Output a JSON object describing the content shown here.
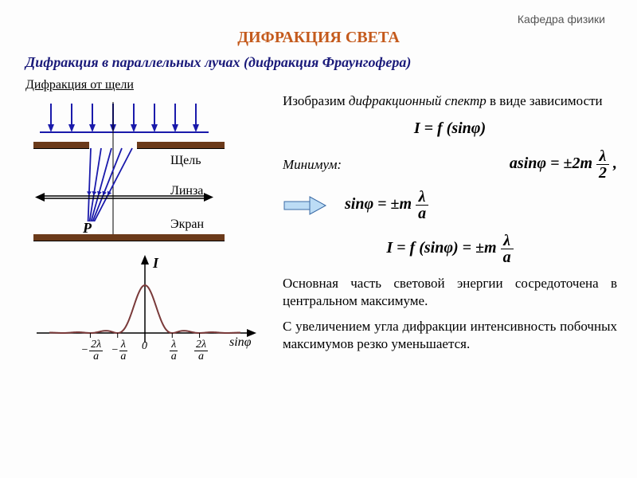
{
  "header": {
    "department": "Кафедра физики",
    "title": "ДИФРАКЦИЯ СВЕТА",
    "subtitle": "Дифракция в параллельных лучах (дифракция Фраунгофера)",
    "section": "Дифракция от щели"
  },
  "diagram": {
    "labels": {
      "slit": "Щель",
      "lens": "Линза",
      "screen": "Экран",
      "point": "P"
    },
    "ray_color": "#1a1aab",
    "arrow_color": "#1a1aab",
    "bar_color": "#6b3a1a",
    "lens_color": "#000000"
  },
  "graph": {
    "curve_color": "#7a3a3a",
    "axis_color": "#000000",
    "y_label": "I",
    "x_label": "sinφ",
    "ticks": [
      "−2λ/a",
      "−λ/a",
      "0",
      "λ/a",
      "2λ/a"
    ],
    "n_side_lobes": 3,
    "central_peak_height": 60,
    "side_peak_height": 14
  },
  "text": {
    "intro_a": "Изобразим ",
    "intro_b": "дифракционный спектр",
    "intro_c": " в виде зависимости",
    "minimum_label": "Минимум:",
    "body1": "Основная часть световой энергии сосредоточена в центральном максимуме.",
    "body2": "С увеличением угла дифракции интенсивность побочных максимумов резко уменьшается."
  },
  "formulas": {
    "f1": "I = f (sinφ)",
    "min_lhs": "asinφ = ±2m",
    "min_frac_n": "λ",
    "min_frac_d": "2",
    "sin_lhs": "sinφ = ±m",
    "sin_frac_n": "λ",
    "sin_frac_d": "a",
    "I_lhs": "I = f (sinφ) = ±m",
    "I_frac_n": "λ",
    "I_frac_d": "a"
  },
  "colors": {
    "title": "#c45a1c",
    "subtitle": "#1a1a7a",
    "arrow_block_fill": "#bcdcf5",
    "arrow_block_stroke": "#3a6aa5"
  }
}
